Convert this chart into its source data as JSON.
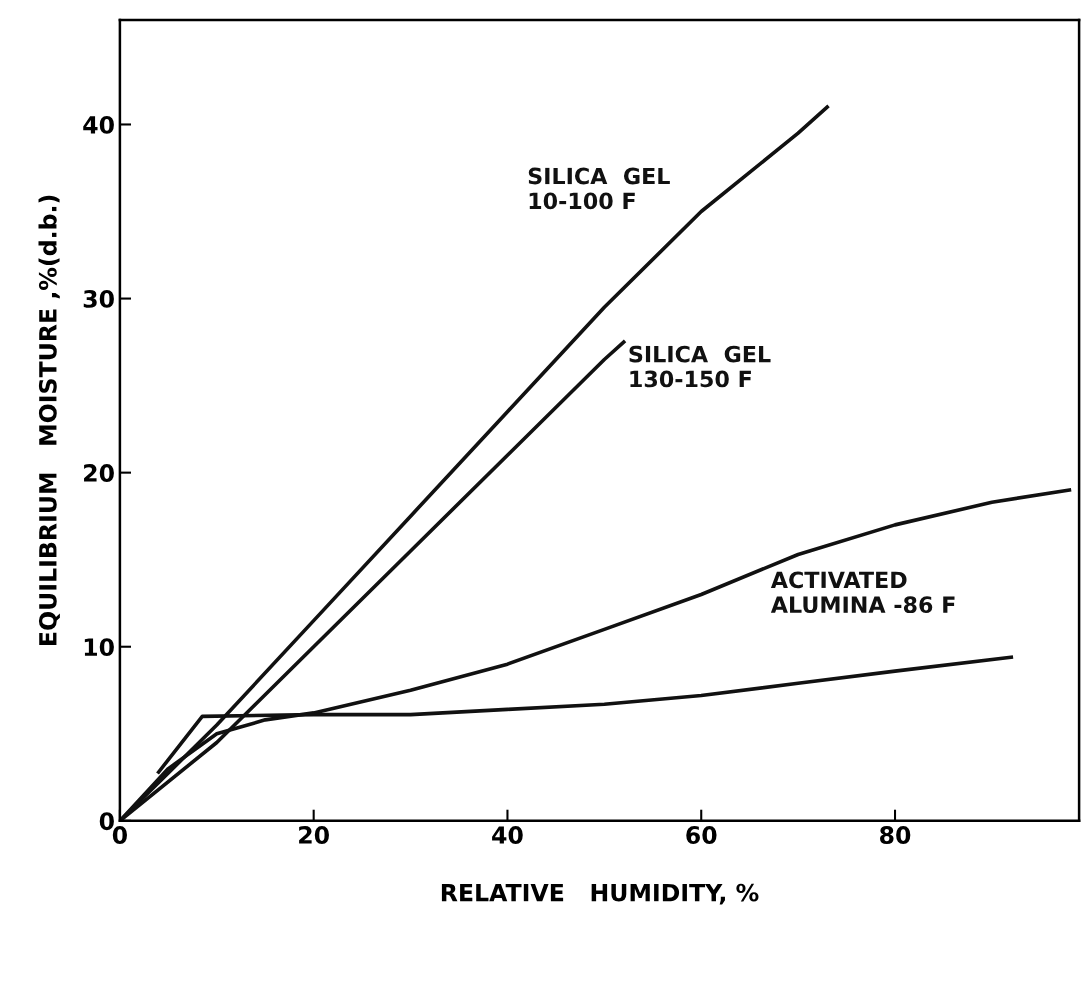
{
  "chart_data": {
    "type": "line",
    "xlabel": "RELATIVE   HUMIDITY, %",
    "ylabel": "EQUILIBRIUM   MOISTURE ,%(d.b.)",
    "xlim": [
      0,
      99
    ],
    "ylim": [
      0,
      46
    ],
    "xticks": [
      0,
      20,
      40,
      60,
      80
    ],
    "yticks": [
      0,
      10,
      20,
      30,
      40
    ],
    "grid": false,
    "marker": "none",
    "line_style": "solid",
    "series": [
      {
        "name": "SILICA  GEL\n10-100 F",
        "color": "#111111",
        "x": [
          0,
          10,
          20,
          30,
          40,
          50,
          60,
          70,
          73
        ],
        "values": [
          0,
          5.5,
          11.5,
          17.5,
          23.5,
          29.5,
          35,
          39.5,
          41
        ]
      },
      {
        "name": "SILICA  GEL\n130-150 F",
        "color": "#111111",
        "x": [
          0,
          10,
          20,
          30,
          40,
          50,
          52
        ],
        "values": [
          0,
          4.5,
          10,
          15.5,
          21,
          26.5,
          27.5
        ]
      },
      {
        "name": "ACTIVATED\nALUMINA -86 F",
        "color": "#111111",
        "x": [
          0,
          5,
          10,
          15,
          20,
          30,
          40,
          50,
          60,
          70,
          80,
          90,
          98
        ],
        "values": [
          0,
          3,
          5,
          5.8,
          6.2,
          7.5,
          9,
          11,
          13,
          15.3,
          17,
          18.3,
          19
        ]
      },
      {
        "color": "#111111",
        "x": [
          4,
          8.5,
          20,
          30,
          40,
          50,
          60,
          70,
          80,
          92
        ],
        "values": [
          2.8,
          6,
          6.1,
          6.1,
          6.4,
          6.7,
          7.2,
          7.9,
          8.6,
          9.4
        ]
      }
    ]
  }
}
